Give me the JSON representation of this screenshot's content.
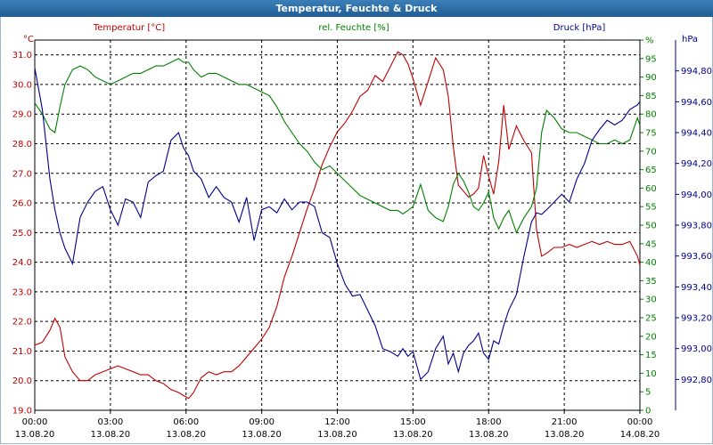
{
  "window": {
    "title": "Temperatur, Feuchte & Druck"
  },
  "colors": {
    "temperature": "#c00000",
    "humidity": "#008000",
    "pressure": "#00008b",
    "grid": "#000000",
    "title_bar": "#2a6aa8"
  },
  "chart_data": {
    "type": "line",
    "title": "Temperatur, Feuchte & Druck",
    "grid": true,
    "legend": "top",
    "x_ticks": [
      {
        "time": "00:00",
        "date": "13.08.20"
      },
      {
        "time": "03:00",
        "date": "13.08.20"
      },
      {
        "time": "06:00",
        "date": "13.08.20"
      },
      {
        "time": "09:00",
        "date": "13.08.20"
      },
      {
        "time": "12:00",
        "date": "13.08.20"
      },
      {
        "time": "15:00",
        "date": "13.08.20"
      },
      {
        "time": "18:00",
        "date": "13.08.20"
      },
      {
        "time": "21:00",
        "date": "13.08.20"
      },
      {
        "time": "00:00",
        "date": "14.08.20"
      }
    ],
    "x_range_hours": [
      0,
      24
    ],
    "axes": {
      "temperature": {
        "unit_label": "°C",
        "ylim": [
          19,
          31.5
        ],
        "ticks": [
          "19.0",
          "20.0",
          "21.0",
          "22.0",
          "23.0",
          "24.0",
          "25.0",
          "26.0",
          "27.0",
          "28.0",
          "29.0",
          "30.0",
          "31.0"
        ]
      },
      "humidity": {
        "unit_label": "%",
        "ylim": [
          0,
          100
        ],
        "ticks": [
          "0",
          "5",
          "10",
          "15",
          "20",
          "25",
          "30",
          "35",
          "40",
          "45",
          "50",
          "55",
          "60",
          "65",
          "70",
          "75",
          "80",
          "85",
          "90",
          "95",
          "%"
        ]
      },
      "pressure": {
        "unit_label": "hPa",
        "ylim": [
          992.6,
          995.0
        ],
        "ticks": [
          "992,80",
          "993,00",
          "993,20",
          "993,40",
          "993,60",
          "993,80",
          "994,00",
          "994,20",
          "994,40",
          "994,60",
          "994,80"
        ]
      }
    },
    "series": [
      {
        "name": "Temperatur [°C]",
        "axis": "temperature",
        "x": [
          0,
          0.3,
          0.6,
          0.8,
          1.0,
          1.2,
          1.5,
          1.8,
          2.1,
          2.4,
          2.7,
          3.0,
          3.3,
          3.6,
          3.9,
          4.2,
          4.5,
          4.8,
          5.1,
          5.4,
          5.7,
          5.9,
          6.1,
          6.3,
          6.6,
          6.9,
          7.2,
          7.5,
          7.8,
          8.1,
          8.4,
          8.7,
          9.0,
          9.3,
          9.6,
          9.9,
          10.2,
          10.5,
          10.8,
          11.1,
          11.4,
          11.7,
          12.0,
          12.3,
          12.6,
          12.9,
          13.2,
          13.5,
          13.8,
          14.1,
          14.4,
          14.6,
          14.8,
          15.0,
          15.3,
          15.6,
          15.9,
          16.2,
          16.4,
          16.6,
          16.8,
          17.0,
          17.2,
          17.4,
          17.6,
          17.8,
          18.0,
          18.2,
          18.4,
          18.6,
          18.8,
          19.1,
          19.4,
          19.7,
          19.9,
          20.1,
          20.3,
          20.6,
          20.9,
          21.2,
          21.5,
          21.8,
          22.1,
          22.4,
          22.7,
          23.0,
          23.3,
          23.6,
          23.9,
          24.0
        ],
        "values": [
          21.2,
          21.3,
          21.7,
          22.1,
          21.8,
          20.8,
          20.3,
          20.0,
          20.0,
          20.2,
          20.3,
          20.4,
          20.5,
          20.4,
          20.3,
          20.2,
          20.2,
          20.0,
          19.9,
          19.7,
          19.6,
          19.5,
          19.4,
          19.6,
          20.1,
          20.3,
          20.2,
          20.3,
          20.3,
          20.5,
          20.8,
          21.1,
          21.4,
          21.8,
          22.5,
          23.5,
          24.2,
          25.0,
          25.8,
          26.5,
          27.3,
          27.9,
          28.4,
          28.7,
          29.1,
          29.6,
          29.8,
          30.3,
          30.1,
          30.6,
          31.1,
          31.0,
          30.7,
          30.2,
          29.3,
          30.1,
          30.9,
          30.5,
          29.6,
          27.9,
          26.6,
          26.4,
          26.2,
          26.3,
          26.5,
          27.6,
          26.9,
          26.3,
          27.4,
          29.3,
          27.8,
          28.6,
          28.1,
          27.7,
          25.1,
          24.2,
          24.3,
          24.5,
          24.5,
          24.6,
          24.5,
          24.6,
          24.7,
          24.6,
          24.7,
          24.6,
          24.6,
          24.7,
          24.2,
          23.9
        ]
      },
      {
        "name": "rel. Feuchte [%]",
        "axis": "humidity",
        "x": [
          0,
          0.3,
          0.6,
          0.8,
          1.0,
          1.2,
          1.5,
          1.8,
          2.1,
          2.4,
          2.7,
          3.0,
          3.3,
          3.6,
          3.9,
          4.2,
          4.5,
          4.8,
          5.1,
          5.4,
          5.7,
          5.9,
          6.1,
          6.3,
          6.6,
          6.9,
          7.2,
          7.5,
          7.8,
          8.1,
          8.4,
          8.7,
          9.0,
          9.3,
          9.6,
          9.9,
          10.2,
          10.5,
          10.8,
          11.1,
          11.4,
          11.7,
          12.0,
          12.3,
          12.6,
          12.9,
          13.2,
          13.5,
          13.8,
          14.1,
          14.4,
          14.6,
          14.8,
          15.0,
          15.3,
          15.6,
          15.9,
          16.2,
          16.4,
          16.6,
          16.8,
          17.0,
          17.2,
          17.4,
          17.6,
          17.8,
          18.0,
          18.2,
          18.4,
          18.6,
          18.8,
          19.1,
          19.4,
          19.7,
          19.9,
          20.1,
          20.3,
          20.6,
          20.9,
          21.2,
          21.5,
          21.8,
          22.1,
          22.4,
          22.7,
          23.0,
          23.3,
          23.6,
          23.9,
          24.0
        ],
        "values": [
          83,
          80,
          76,
          75,
          82,
          88,
          92,
          93,
          92,
          90,
          89,
          88,
          89,
          90,
          91,
          91,
          92,
          93,
          93,
          94,
          95,
          94,
          94,
          92,
          90,
          91,
          91,
          90,
          89,
          88,
          88,
          87,
          86,
          85,
          82,
          78,
          75,
          72,
          70,
          67,
          65,
          66,
          64,
          62,
          60,
          58,
          57,
          56,
          55,
          54,
          54,
          53,
          54,
          55,
          61,
          54,
          52,
          51,
          55,
          61,
          64,
          62,
          59,
          55,
          54,
          56,
          59,
          52,
          49,
          52,
          54,
          48,
          52,
          55,
          60,
          75,
          81,
          79,
          76,
          75,
          75,
          74,
          73,
          72,
          72,
          73,
          72,
          73,
          79,
          77
        ]
      },
      {
        "name": "Druck [hPa]",
        "axis": "pressure",
        "x": [
          0,
          0.3,
          0.6,
          0.8,
          1.0,
          1.2,
          1.5,
          1.8,
          2.1,
          2.4,
          2.7,
          3.0,
          3.3,
          3.6,
          3.9,
          4.2,
          4.5,
          4.8,
          5.1,
          5.4,
          5.7,
          5.9,
          6.1,
          6.3,
          6.6,
          6.9,
          7.2,
          7.5,
          7.8,
          8.1,
          8.4,
          8.7,
          9.0,
          9.3,
          9.6,
          9.9,
          10.2,
          10.5,
          10.8,
          11.1,
          11.4,
          11.7,
          12.0,
          12.3,
          12.6,
          12.9,
          13.2,
          13.5,
          13.8,
          14.1,
          14.4,
          14.6,
          14.8,
          15.0,
          15.3,
          15.6,
          15.9,
          16.2,
          16.4,
          16.6,
          16.8,
          17.0,
          17.2,
          17.4,
          17.6,
          17.8,
          18.0,
          18.2,
          18.4,
          18.6,
          18.8,
          19.1,
          19.4,
          19.7,
          19.9,
          20.1,
          20.3,
          20.6,
          20.9,
          21.2,
          21.5,
          21.8,
          22.1,
          22.4,
          22.7,
          23.0,
          23.3,
          23.6,
          23.9,
          24.0
        ],
        "values": [
          994.82,
          994.55,
          994.1,
          993.9,
          993.75,
          993.65,
          993.55,
          993.85,
          993.95,
          994.02,
          994.05,
          993.9,
          993.8,
          993.97,
          993.95,
          993.85,
          994.08,
          994.12,
          994.15,
          994.35,
          994.4,
          994.3,
          994.25,
          994.15,
          994.1,
          993.98,
          994.05,
          993.98,
          993.95,
          993.82,
          993.98,
          993.7,
          993.9,
          993.92,
          993.88,
          993.97,
          993.9,
          993.95,
          993.95,
          993.92,
          993.75,
          993.72,
          993.55,
          993.42,
          993.34,
          993.35,
          993.25,
          993.15,
          993.0,
          992.98,
          992.95,
          993.0,
          992.95,
          992.98,
          992.8,
          992.85,
          993.0,
          993.08,
          992.9,
          992.97,
          992.85,
          992.97,
          993.02,
          993.05,
          993.1,
          992.97,
          992.93,
          993.05,
          993.03,
          993.15,
          993.25,
          993.35,
          993.6,
          993.82,
          993.88,
          993.87,
          993.9,
          993.95,
          994.0,
          993.95,
          994.1,
          994.2,
          994.35,
          994.42,
          994.48,
          994.45,
          994.48,
          994.55,
          994.58,
          994.6
        ]
      }
    ]
  }
}
